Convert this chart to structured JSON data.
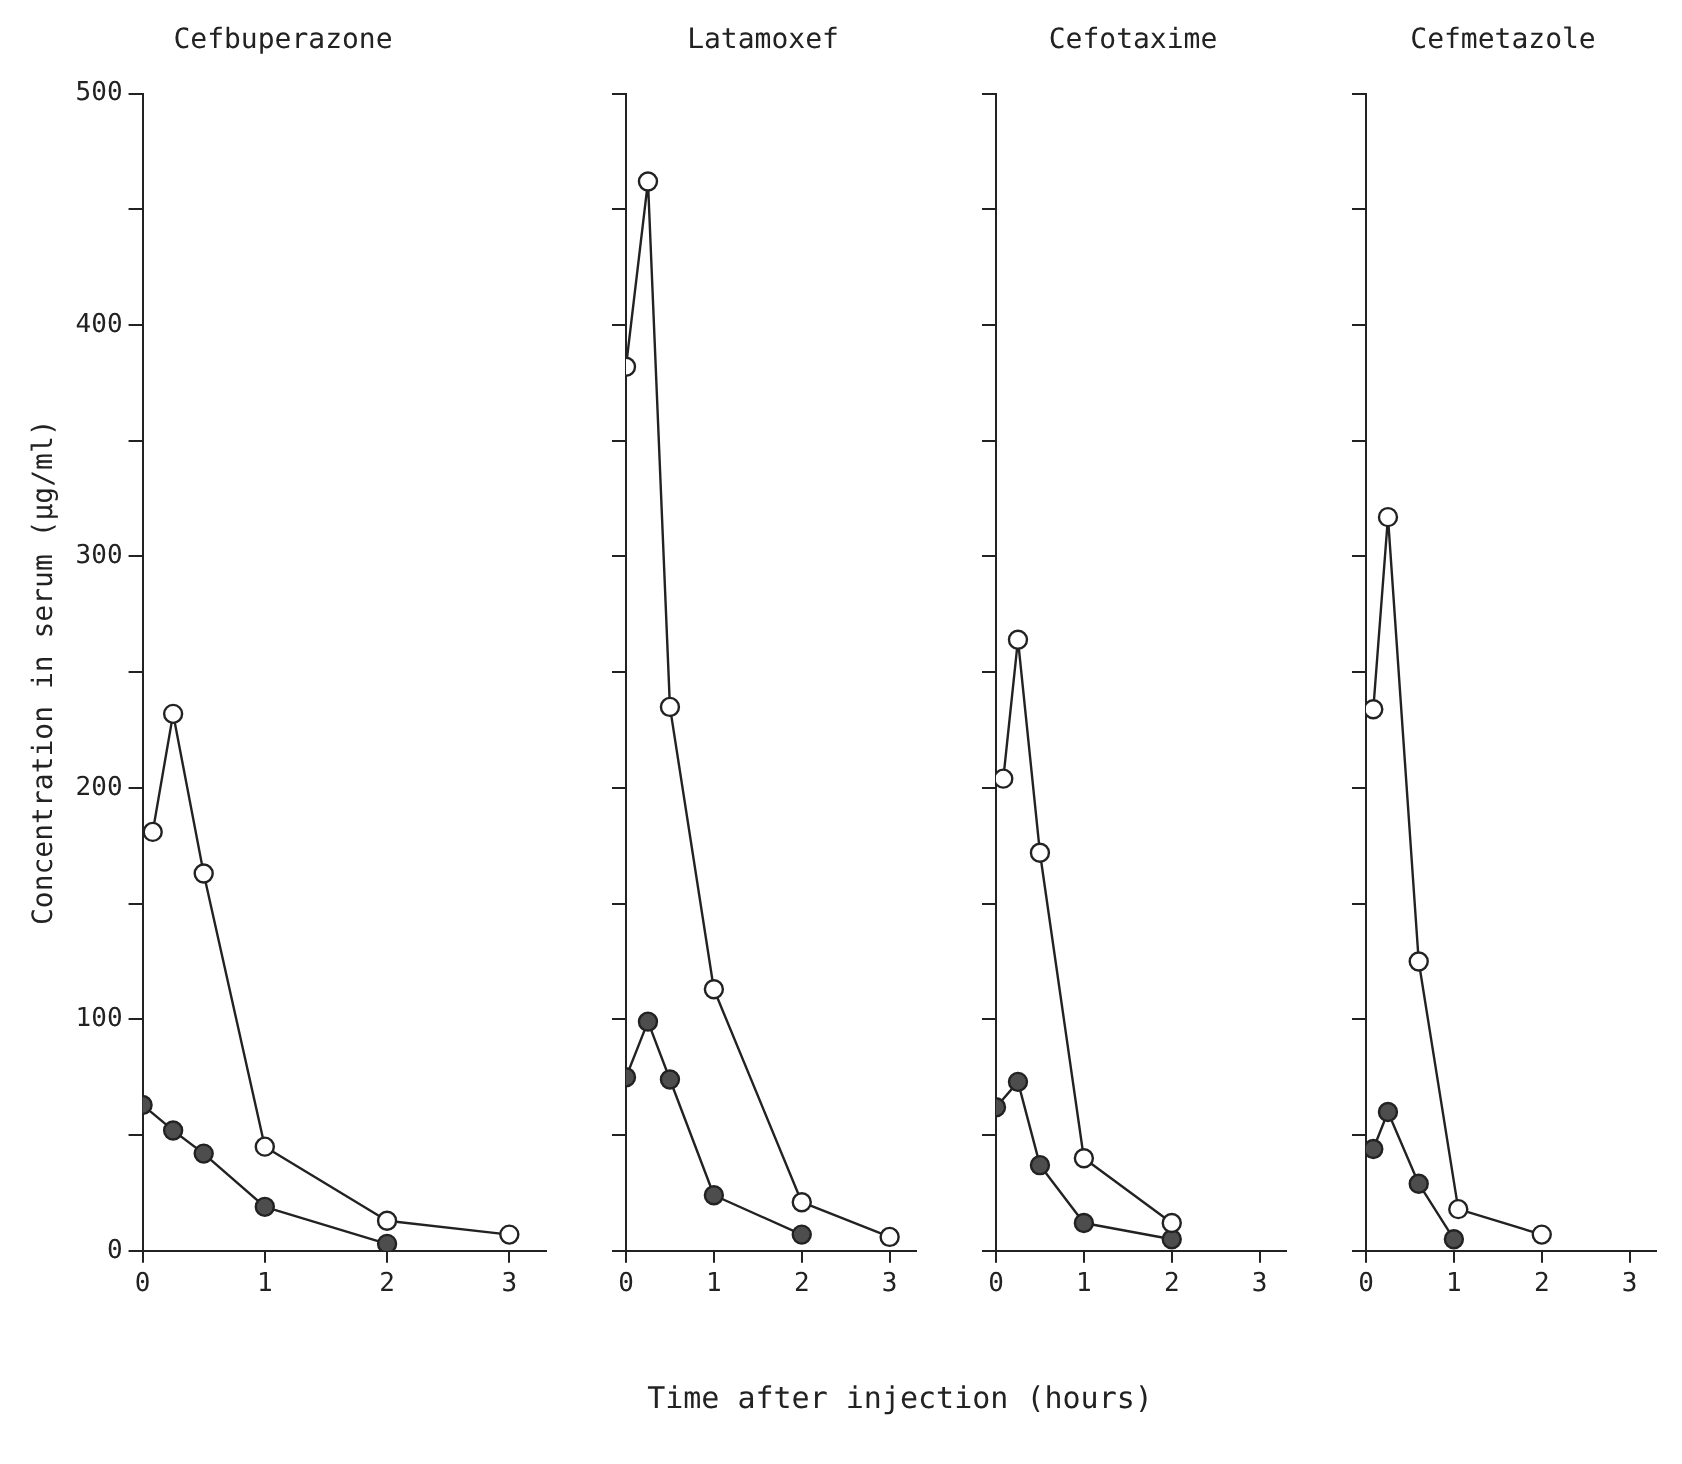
{
  "chart_data": [
    {
      "type": "line",
      "title": "Cefbuperazone",
      "ylabel": "Concentration in serum (µg/ml)",
      "xlabel": "Time after injection (hours)",
      "xlim": [
        0,
        3.3
      ],
      "xticks": [
        0,
        1,
        2,
        3
      ],
      "ylim": [
        0,
        500
      ],
      "yticks": [
        0,
        {
          "value": 50,
          "label": null
        },
        100,
        {
          "value": 150,
          "label": null
        },
        200,
        {
          "value": 250,
          "label": null
        },
        300,
        {
          "value": 350,
          "label": null
        },
        400,
        {
          "value": 450,
          "label": null
        },
        500
      ],
      "marker": "circle",
      "line_style": "solid",
      "grid": false,
      "legend": false,
      "series": [
        {
          "color": "#ffffff",
          "x": [
            0.083,
            0.25,
            0.5,
            1,
            2,
            3
          ],
          "values": [
            181,
            232,
            163,
            45,
            13,
            7
          ]
        },
        {
          "color": "#4d4d4d",
          "x": [
            0,
            0.25,
            0.5,
            1,
            2
          ],
          "values": [
            63,
            52,
            42,
            19,
            3
          ]
        }
      ]
    },
    {
      "type": "line",
      "title": "Latamoxef",
      "xlim": [
        0,
        3.3
      ],
      "xticks": [
        0,
        1,
        2,
        3
      ],
      "ylim": [
        0,
        500
      ],
      "yticks": [
        0,
        {
          "value": 50,
          "label": null
        },
        100,
        {
          "value": 150,
          "label": null
        },
        200,
        {
          "value": 250,
          "label": null
        },
        300,
        {
          "value": 350,
          "label": null
        },
        400,
        {
          "value": 450,
          "label": null
        },
        500
      ],
      "tick_labels": "x",
      "marker": "circle",
      "line_style": "solid",
      "grid": false,
      "legend": false,
      "series": [
        {
          "color": "#ffffff",
          "x": [
            0,
            0.25,
            0.5,
            1,
            2,
            3
          ],
          "values": [
            382,
            462,
            235,
            113,
            21,
            6
          ]
        },
        {
          "color": "#4d4d4d",
          "x": [
            0,
            0.25,
            0.5,
            1,
            2
          ],
          "values": [
            75,
            99,
            74,
            24,
            7
          ]
        }
      ]
    },
    {
      "type": "line",
      "title": "Cefotaxime",
      "xlim": [
        0,
        3.3
      ],
      "xticks": [
        0,
        1,
        2,
        3
      ],
      "ylim": [
        0,
        500
      ],
      "yticks": [
        0,
        {
          "value": 50,
          "label": null
        },
        100,
        {
          "value": 150,
          "label": null
        },
        200,
        {
          "value": 250,
          "label": null
        },
        300,
        {
          "value": 350,
          "label": null
        },
        400,
        {
          "value": 450,
          "label": null
        },
        500
      ],
      "tick_labels": "x",
      "marker": "circle",
      "line_style": "solid",
      "grid": false,
      "legend": false,
      "series": [
        {
          "color": "#ffffff",
          "x": [
            0.083,
            0.25,
            0.5,
            1,
            2
          ],
          "values": [
            204,
            264,
            172,
            40,
            12
          ]
        },
        {
          "color": "#4d4d4d",
          "x": [
            0,
            0.25,
            0.5,
            1,
            2
          ],
          "values": [
            62,
            73,
            37,
            12,
            5
          ]
        }
      ]
    },
    {
      "type": "line",
      "title": "Cefmetazole",
      "xlim": [
        0,
        3.3
      ],
      "xticks": [
        0,
        1,
        2,
        3
      ],
      "ylim": [
        0,
        500
      ],
      "yticks": [
        0,
        {
          "value": 50,
          "label": null
        },
        100,
        {
          "value": 150,
          "label": null
        },
        200,
        {
          "value": 250,
          "label": null
        },
        300,
        {
          "value": 350,
          "label": null
        },
        400,
        {
          "value": 450,
          "label": null
        },
        500
      ],
      "tick_labels": "x",
      "marker": "circle",
      "line_style": "solid",
      "grid": false,
      "legend": false,
      "series": [
        {
          "color": "#ffffff",
          "x": [
            0.083,
            0.25,
            0.6,
            1.05,
            2
          ],
          "values": [
            234,
            317,
            125,
            18,
            7
          ]
        },
        {
          "color": "#4d4d4d",
          "x": [
            0.083,
            0.25,
            0.6,
            1
          ],
          "values": [
            44,
            60,
            29,
            5
          ]
        }
      ]
    }
  ]
}
